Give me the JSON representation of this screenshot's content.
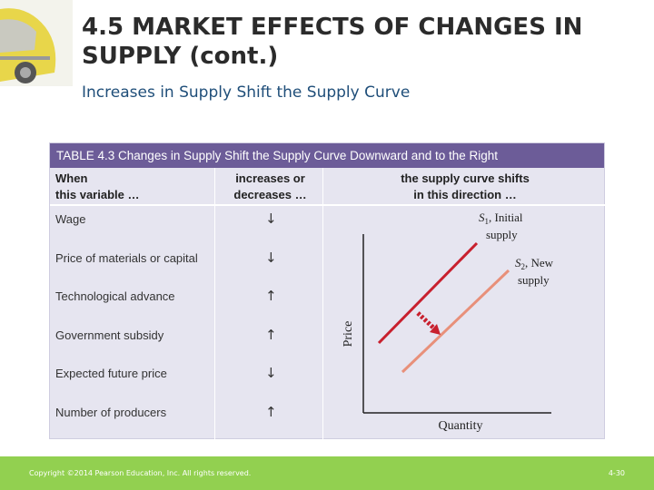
{
  "slide": {
    "title": "4.5 MARKET EFFECTS OF CHANGES IN SUPPLY (cont.)",
    "subtitle": "Increases in Supply Shift the Supply Curve"
  },
  "table": {
    "caption": "TABLE 4.3  Changes in Supply Shift the Supply Curve Downward and to the Right",
    "col1": [
      "When",
      "this variable …"
    ],
    "col2": [
      "increases or",
      "decreases …"
    ],
    "col3": [
      "the supply curve shifts",
      "in this direction …"
    ],
    "rows": [
      {
        "label": "Wage",
        "arrow": "↓"
      },
      {
        "label": "Price of materials or capital",
        "arrow": "↓"
      },
      {
        "label": "Technological advance",
        "arrow": "↑"
      },
      {
        "label": "Government subsidy",
        "arrow": "↑"
      },
      {
        "label": "Expected future price",
        "arrow": "↓"
      },
      {
        "label": "Number of producers",
        "arrow": "↑"
      }
    ]
  },
  "chart": {
    "y_label": "Price",
    "x_label": "Quantity",
    "s1_sym": "S",
    "s1_sub": "1",
    "s1_line1": ", Initial",
    "s1_line2": "supply",
    "s2_sym": "S",
    "s2_sub": "2",
    "s2_line1": ", New",
    "s2_line2": "supply",
    "colors": {
      "initial": "#c8202e",
      "new": "#e8907a",
      "shift_arrow": "#c8202e"
    }
  },
  "footer": {
    "copyright": "Copyright ©2014 Pearson Education, Inc. All rights reserved.",
    "page": "4-30"
  }
}
